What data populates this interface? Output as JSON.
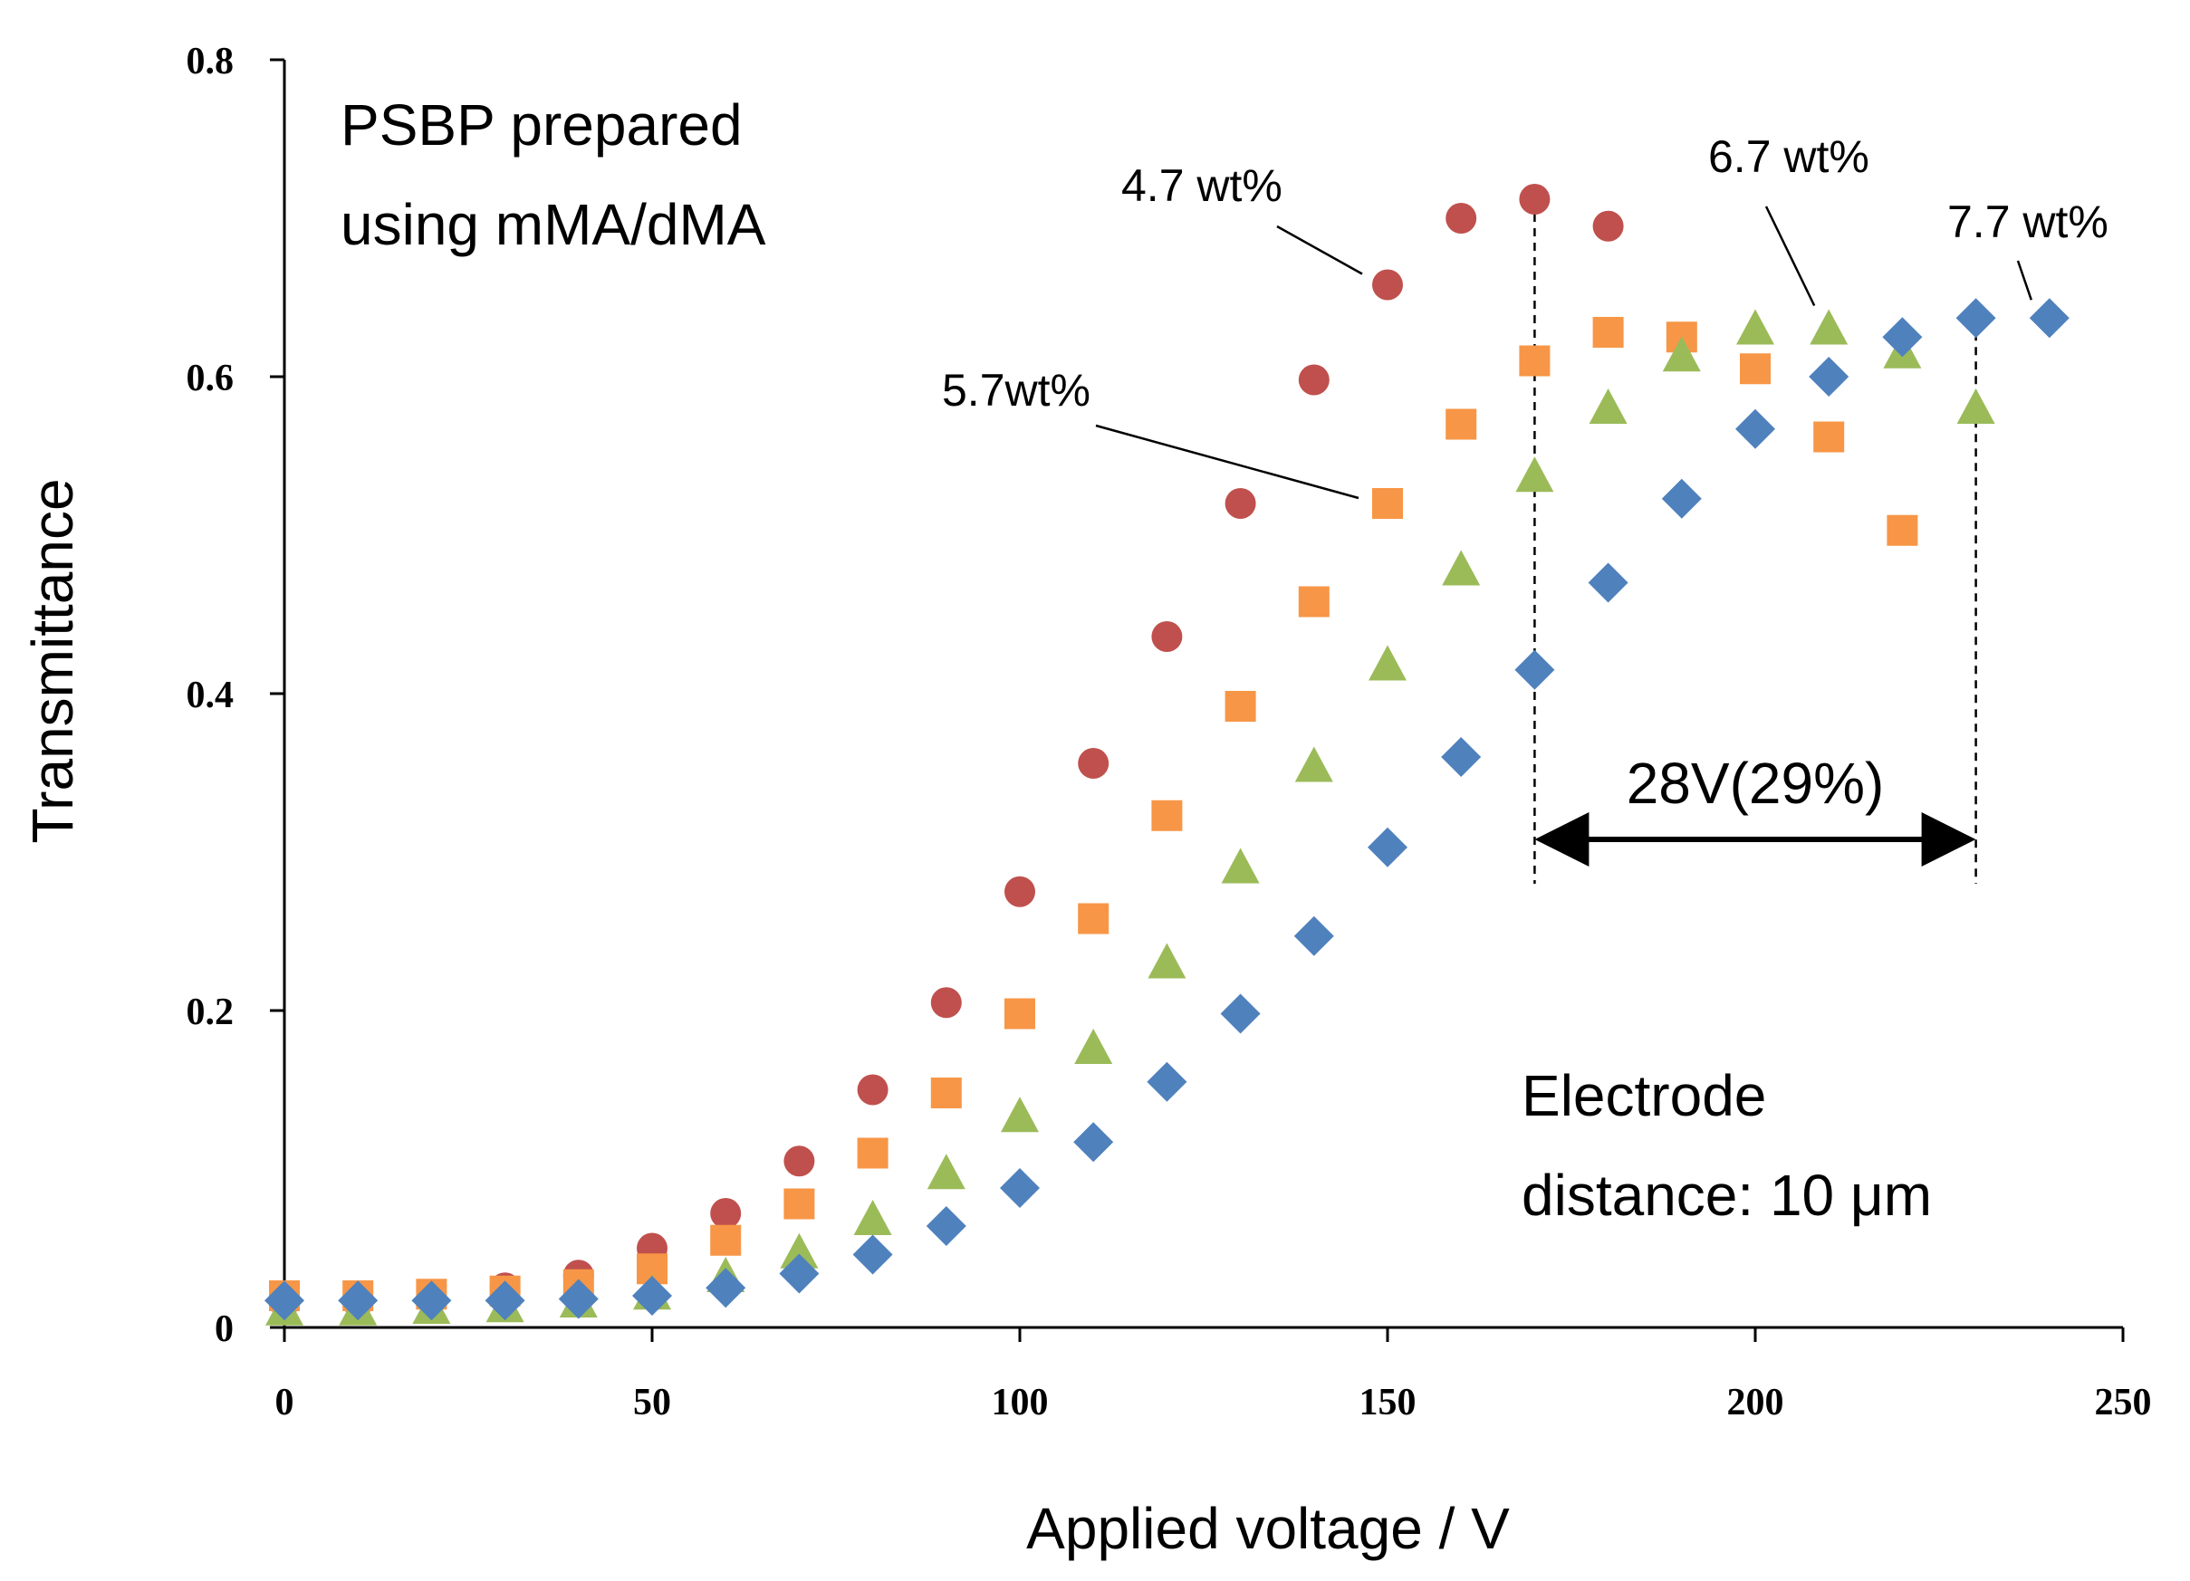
{
  "chart_data": {
    "type": "scatter",
    "xlabel": "Applied voltage / V",
    "ylabel": "Transmittance",
    "xlim": [
      0,
      250
    ],
    "ylim": [
      0,
      0.8
    ],
    "xticks": [
      0,
      50,
      100,
      150,
      200,
      250
    ],
    "xtick_labels": [
      "0",
      "50",
      "100",
      "150",
      "200",
      "250"
    ],
    "yticks": [
      0,
      0.2,
      0.4,
      0.6,
      0.8
    ],
    "ytick_labels": [
      "0",
      "0.2",
      "0.4",
      "0.6",
      "0.8"
    ],
    "grid": false,
    "series": [
      {
        "name": "4.7 wt%",
        "marker": "circle",
        "color": "#C0504D",
        "x": [
          0,
          10,
          20,
          30,
          40,
          50,
          60,
          70,
          80,
          90,
          100,
          110,
          120,
          130,
          140,
          150,
          160,
          170,
          180
        ],
        "y": [
          0.016,
          0.016,
          0.019,
          0.025,
          0.033,
          0.05,
          0.072,
          0.105,
          0.15,
          0.205,
          0.275,
          0.356,
          0.436,
          0.52,
          0.598,
          0.658,
          0.7,
          0.712,
          0.695
        ]
      },
      {
        "name": "5.7wt%",
        "marker": "square",
        "color": "#F79646",
        "x": [
          0,
          10,
          20,
          30,
          40,
          50,
          60,
          70,
          80,
          90,
          100,
          110,
          120,
          130,
          140,
          150,
          160,
          170,
          180,
          190,
          200,
          210,
          220
        ],
        "y": [
          0.02,
          0.02,
          0.021,
          0.023,
          0.027,
          0.037,
          0.055,
          0.078,
          0.11,
          0.148,
          0.198,
          0.258,
          0.323,
          0.392,
          0.458,
          0.52,
          0.57,
          0.61,
          0.628,
          0.625,
          0.605,
          0.562,
          0.503
        ]
      },
      {
        "name": "6.7 wt%",
        "marker": "triangle",
        "color": "#9BBB59",
        "x": [
          0,
          10,
          20,
          30,
          40,
          50,
          60,
          70,
          80,
          90,
          100,
          110,
          120,
          130,
          140,
          150,
          160,
          170,
          180,
          190,
          200,
          210,
          220,
          230
        ],
        "y": [
          0.011,
          0.011,
          0.012,
          0.013,
          0.016,
          0.021,
          0.032,
          0.047,
          0.068,
          0.097,
          0.133,
          0.176,
          0.23,
          0.29,
          0.354,
          0.418,
          0.478,
          0.537,
          0.58,
          0.613,
          0.63,
          0.63,
          0.615,
          0.58
        ]
      },
      {
        "name": "7.7 wt%",
        "marker": "diamond",
        "color": "#4F81BD",
        "x": [
          0,
          10,
          20,
          30,
          40,
          50,
          60,
          70,
          80,
          90,
          100,
          110,
          120,
          130,
          140,
          150,
          160,
          170,
          180,
          190,
          200,
          210,
          220,
          230,
          240
        ],
        "y": [
          0.017,
          0.017,
          0.017,
          0.017,
          0.018,
          0.02,
          0.025,
          0.034,
          0.046,
          0.064,
          0.088,
          0.117,
          0.155,
          0.198,
          0.247,
          0.303,
          0.36,
          0.415,
          0.47,
          0.523,
          0.567,
          0.6,
          0.625,
          0.637,
          0.637
        ]
      }
    ],
    "annotations": {
      "title": [
        "PSBP prepared",
        "using mMA/dMA"
      ],
      "electrode": [
        "Electrode",
        "distance: 10 μm"
      ],
      "shift_label": "28V(29%)",
      "shift_x": [
        170,
        230
      ],
      "shift_y": 0.308,
      "callouts": [
        {
          "text": "4.7 wt%",
          "to": [
            150,
            0.658
          ]
        },
        {
          "text": "5.7wt%",
          "to": [
            150,
            0.52
          ]
        },
        {
          "text": "6.7 wt%",
          "to": [
            210,
            0.63
          ]
        },
        {
          "text": "7.7 wt%",
          "to": [
            240,
            0.637
          ]
        }
      ]
    }
  }
}
